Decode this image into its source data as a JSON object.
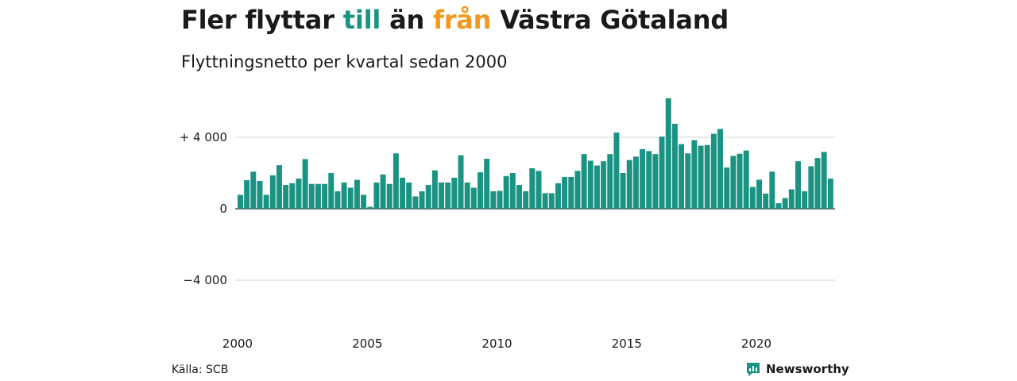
{
  "header": {
    "title_parts": [
      "Fler flyttar ",
      "till",
      " än ",
      "från",
      " Västra Götaland"
    ],
    "subtitle": "Flyttningsnetto per kvartal sedan 2000"
  },
  "footer": {
    "source": "Källa: SCB",
    "brand": "Newsworthy"
  },
  "colors": {
    "bar": "#1b9383",
    "accent_in": "#1b9383",
    "accent_out": "#f29a1f",
    "grid": "#d9d9d9",
    "text": "#1a1a1a"
  },
  "chart_data": {
    "type": "bar",
    "x_label": "",
    "y_label": "",
    "ylim": [
      -6000,
      6500
    ],
    "y_ticks": [
      4000,
      0,
      -4000
    ],
    "y_tick_labels": [
      "+ 4 000",
      "0",
      "−4 000"
    ],
    "x_ticks": [
      2000,
      2005,
      2010,
      2015,
      2020
    ],
    "x_tick_labels": [
      "2000",
      "2005",
      "2010",
      "2015",
      "2020"
    ],
    "grid": true,
    "start_year": 2000,
    "values": [
      780,
      1600,
      2080,
      1560,
      780,
      1870,
      2440,
      1330,
      1430,
      1690,
      2780,
      1390,
      1390,
      1390,
      2000,
      980,
      1470,
      1180,
      1620,
      780,
      110,
      1470,
      1920,
      1390,
      3100,
      1740,
      1470,
      690,
      980,
      1330,
      2150,
      1470,
      1470,
      1740,
      3000,
      1470,
      1180,
      2040,
      2800,
      980,
      1000,
      1830,
      2000,
      1330,
      980,
      2270,
      2120,
      870,
      870,
      1430,
      1780,
      1780,
      2120,
      3060,
      2690,
      2420,
      2660,
      3060,
      4270,
      2000,
      2730,
      2920,
      3340,
      3230,
      3060,
      4040,
      6190,
      4760,
      3620,
      3100,
      3840,
      3530,
      3570,
      4200,
      4470,
      2310,
      2960,
      3080,
      3260,
      1220,
      1630,
      850,
      2080,
      310,
      600,
      1090,
      2660,
      980,
      2380,
      2840,
      3180,
      1690
    ]
  }
}
